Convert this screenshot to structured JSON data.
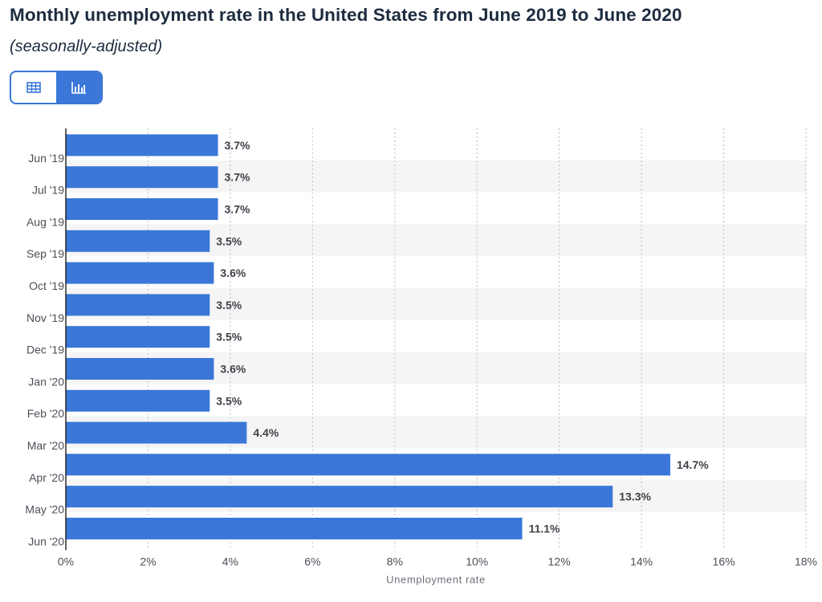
{
  "header": {
    "title": "Monthly unemployment rate in the United States from June 2019 to June 2020",
    "subtitle": "(seasonally-adjusted)"
  },
  "view_toggle": {
    "options": [
      {
        "icon": "table-icon",
        "active": false
      },
      {
        "icon": "bar-chart-icon",
        "active": true
      }
    ],
    "accent_color": "#3a77d8"
  },
  "chart_data": {
    "type": "bar",
    "orientation": "horizontal",
    "categories": [
      "Jun '19",
      "Jul '19",
      "Aug '19",
      "Sep '19",
      "Oct '19",
      "Nov '19",
      "Dec '19",
      "Jan '20",
      "Feb '20",
      "Mar '20",
      "Apr '20",
      "May '20",
      "Jun '20"
    ],
    "values": [
      3.7,
      3.7,
      3.7,
      3.5,
      3.6,
      3.5,
      3.5,
      3.6,
      3.5,
      4.4,
      14.7,
      13.3,
      11.1
    ],
    "value_labels": [
      "3.7%",
      "3.7%",
      "3.7%",
      "3.5%",
      "3.6%",
      "3.5%",
      "3.5%",
      "3.6%",
      "3.5%",
      "4.4%",
      "14.7%",
      "13.3%",
      "11.1%"
    ],
    "xlabel": "Unemployment rate",
    "xlim": [
      0,
      18
    ],
    "xticks": [
      0,
      2,
      4,
      6,
      8,
      10,
      12,
      14,
      16,
      18
    ],
    "xtick_labels": [
      "0%",
      "2%",
      "4%",
      "6%",
      "8%",
      "10%",
      "12%",
      "14%",
      "16%",
      "18%"
    ],
    "bar_color": "#3a77d8",
    "grid": true,
    "alternating_row_shading": true
  }
}
